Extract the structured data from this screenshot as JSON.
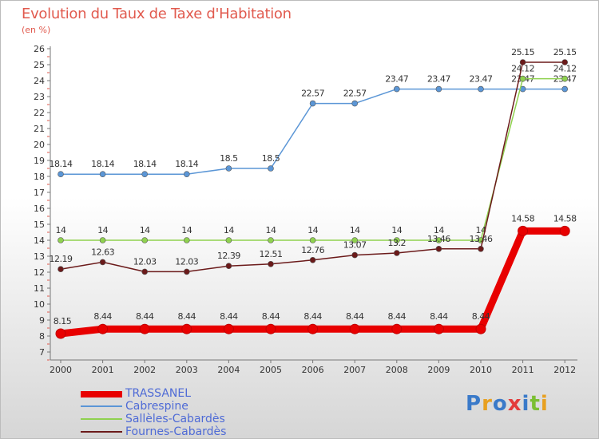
{
  "header": {
    "title": "Evolution du Taux de Taxe d'Habitation",
    "unit": "(en %)"
  },
  "logo": {
    "text": "Proxiti",
    "colors": [
      "#3a7ac9",
      "#e8a020",
      "#3a7ac9",
      "#e33c3c",
      "#3a7ac9",
      "#7bbf32",
      "#e8a020"
    ]
  },
  "chart_data": {
    "type": "line",
    "title": "Evolution du Taux de Taxe d'Habitation",
    "ylabel": "(en %)",
    "xlabel": "",
    "categories": [
      "2000",
      "2001",
      "2002",
      "2003",
      "2004",
      "2005",
      "2006",
      "2007",
      "2008",
      "2009",
      "2010",
      "2011",
      "2012"
    ],
    "yticks": [
      "7",
      "8",
      "9",
      "10",
      "11",
      "12",
      "13",
      "14",
      "15",
      "16",
      "17",
      "18",
      "19",
      "20",
      "21",
      "22",
      "23",
      "24",
      "25",
      "26"
    ],
    "ylim": [
      7,
      26
    ],
    "grid": false,
    "legend_position": "bottom-left",
    "series": [
      {
        "name": "TRASSANEL",
        "color": "#e80000",
        "values": [
          8.15,
          8.44,
          8.44,
          8.44,
          8.44,
          8.44,
          8.44,
          8.44,
          8.44,
          8.44,
          8.44,
          14.58,
          14.58
        ],
        "labels": [
          "8.15",
          "8.44",
          "8.44",
          "8.44",
          "8.44",
          "8.44",
          "8.44",
          "8.44",
          "8.44",
          "8.44",
          "8.44",
          "14.58",
          "14.58"
        ]
      },
      {
        "name": "Cabrespine",
        "color": "#5b96d6",
        "values": [
          18.14,
          18.14,
          18.14,
          18.14,
          18.5,
          18.5,
          22.57,
          22.57,
          23.47,
          23.47,
          23.47,
          23.47,
          23.47
        ],
        "labels": [
          "18.14",
          "18.14",
          "18.14",
          "18.14",
          "18.5",
          "18.5",
          "22.57",
          "22.57",
          "23.47",
          "23.47",
          "23.47",
          "23.47",
          "23.47"
        ]
      },
      {
        "name": "Sallèles-Cabardès",
        "color": "#8fd14f",
        "values": [
          14,
          14,
          14,
          14,
          14,
          14,
          14,
          14,
          14,
          14,
          14,
          24.12,
          24.12
        ],
        "labels": [
          "14",
          "14",
          "14",
          "14",
          "14",
          "14",
          "14",
          "14",
          "14",
          "14",
          "14",
          "24.12",
          "24.12"
        ]
      },
      {
        "name": "Fournes-Cabardès",
        "color": "#6b1a1a",
        "values": [
          12.19,
          12.63,
          12.03,
          12.03,
          12.39,
          12.51,
          12.76,
          13.07,
          13.2,
          13.46,
          13.46,
          25.15,
          25.15
        ],
        "labels": [
          "12.19",
          "12.63",
          "12.03",
          "12.03",
          "12.39",
          "12.51",
          "12.76",
          "13.07",
          "13.2",
          "13.46",
          "13.46",
          "25.15",
          "25.15"
        ]
      }
    ]
  }
}
